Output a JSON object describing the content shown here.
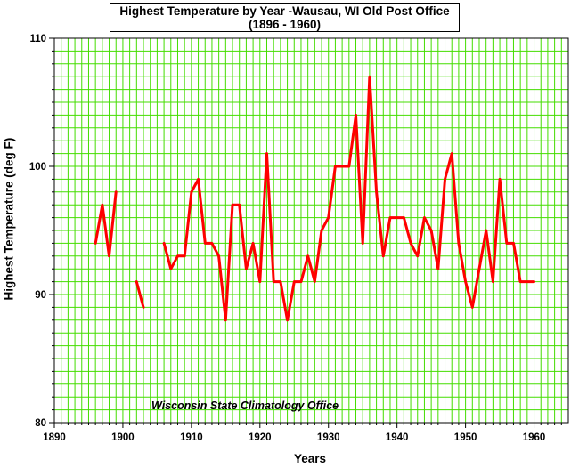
{
  "chart_data": {
    "type": "line",
    "title": "Highest Temperature by Year -Wausau, WI Old Post Office",
    "subtitle": "(1896 - 1960)",
    "xlabel": "Years",
    "ylabel": "Highest Temperature (deg F)",
    "annotation": "Wisconsin State Climatology Office",
    "xlim": [
      1890,
      1965
    ],
    "ylim": [
      80,
      110
    ],
    "xticks": [
      1890,
      1900,
      1910,
      1920,
      1930,
      1940,
      1950,
      1960
    ],
    "yticks": [
      80,
      90,
      100,
      110
    ],
    "grid": true,
    "line_color": "#ff0000",
    "grid_color": "#44dd00",
    "series": [
      {
        "x": [
          1896,
          1897,
          1898,
          1899,
          1900,
          1901,
          1902,
          1903,
          1904,
          1905,
          1906,
          1907,
          1908,
          1909,
          1910,
          1911,
          1912,
          1913,
          1914,
          1915,
          1916,
          1917,
          1918,
          1919,
          1920,
          1921,
          1922,
          1923,
          1924,
          1925,
          1926,
          1927,
          1928,
          1929,
          1930,
          1931,
          1932,
          1933,
          1934,
          1935,
          1936,
          1937,
          1938,
          1939,
          1940,
          1941,
          1942,
          1943,
          1944,
          1945,
          1946,
          1947,
          1948,
          1949,
          1950,
          1951,
          1952,
          1953,
          1954,
          1955,
          1956,
          1957,
          1958,
          1959,
          1960
        ],
        "y": [
          94,
          97,
          93,
          98,
          null,
          null,
          91,
          89,
          null,
          null,
          94,
          92,
          93,
          93,
          98,
          99,
          94,
          94,
          93,
          88,
          97,
          97,
          92,
          94,
          91,
          101,
          91,
          91,
          88,
          91,
          91,
          93,
          91,
          95,
          96,
          100,
          100,
          100,
          104,
          94,
          107,
          98,
          93,
          96,
          96,
          96,
          94,
          93,
          96,
          95,
          92,
          99,
          101,
          94,
          91,
          89,
          92,
          95,
          91,
          99,
          94,
          94,
          91,
          91,
          91
        ]
      }
    ]
  }
}
